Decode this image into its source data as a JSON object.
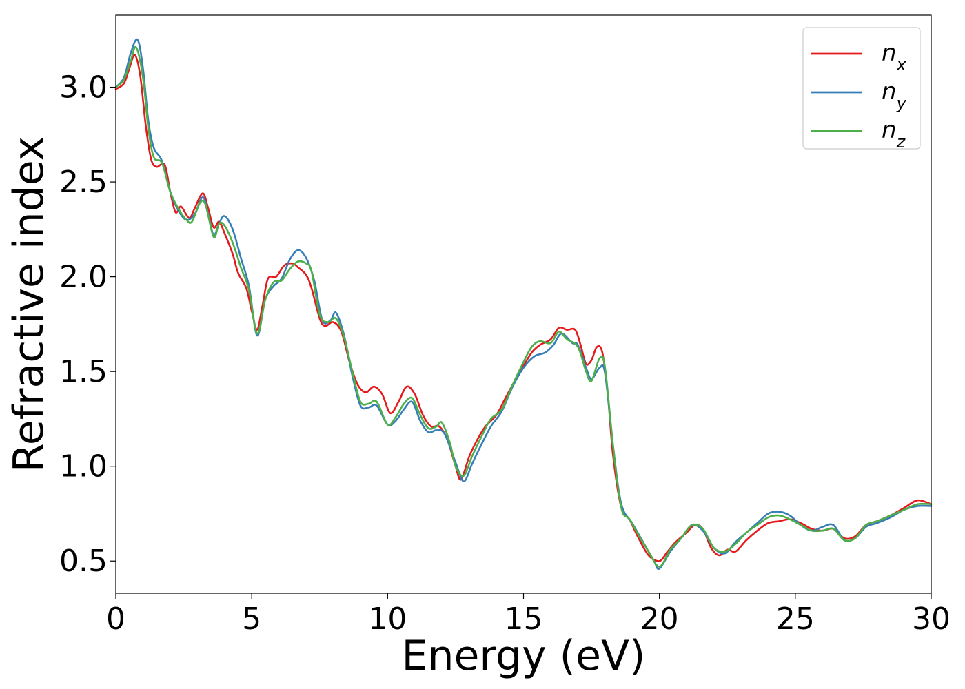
{
  "chart_data": {
    "type": "line",
    "title": "",
    "xlabel": "Energy (eV)",
    "ylabel": "Refractive index",
    "xlim": [
      0,
      30
    ],
    "ylim": [
      0.33,
      3.38
    ],
    "xticks": [
      0,
      5,
      10,
      15,
      20,
      25,
      30
    ],
    "yticks": [
      0.5,
      1.0,
      1.5,
      2.0,
      2.5,
      3.0
    ],
    "xtick_labels": [
      "0",
      "5",
      "10",
      "15",
      "20",
      "25",
      "30"
    ],
    "ytick_labels": [
      "0.5",
      "1.0",
      "1.5",
      "2.0",
      "2.5",
      "3.0"
    ],
    "grid": false,
    "legend_position": "top-right",
    "series": [
      {
        "name": "n",
        "subscript": "x",
        "color": "#e41a1c",
        "points": [
          [
            0,
            2.99
          ],
          [
            0.3,
            3.02
          ],
          [
            0.5,
            3.1
          ],
          [
            0.7,
            3.17
          ],
          [
            0.9,
            3.06
          ],
          [
            1.1,
            2.8
          ],
          [
            1.3,
            2.62
          ],
          [
            1.5,
            2.58
          ],
          [
            1.8,
            2.59
          ],
          [
            2.0,
            2.45
          ],
          [
            2.2,
            2.34
          ],
          [
            2.4,
            2.37
          ],
          [
            2.7,
            2.31
          ],
          [
            2.9,
            2.36
          ],
          [
            3.2,
            2.44
          ],
          [
            3.4,
            2.36
          ],
          [
            3.6,
            2.26
          ],
          [
            3.8,
            2.29
          ],
          [
            4.0,
            2.23
          ],
          [
            4.3,
            2.12
          ],
          [
            4.5,
            2.02
          ],
          [
            4.8,
            1.94
          ],
          [
            5.0,
            1.82
          ],
          [
            5.2,
            1.72
          ],
          [
            5.4,
            1.85
          ],
          [
            5.6,
            1.99
          ],
          [
            5.9,
            2.0
          ],
          [
            6.2,
            2.06
          ],
          [
            6.5,
            2.07
          ],
          [
            6.7,
            2.05
          ],
          [
            7.0,
            2.01
          ],
          [
            7.2,
            1.94
          ],
          [
            7.5,
            1.78
          ],
          [
            7.7,
            1.74
          ],
          [
            8.0,
            1.76
          ],
          [
            8.3,
            1.71
          ],
          [
            8.6,
            1.55
          ],
          [
            8.9,
            1.43
          ],
          [
            9.2,
            1.39
          ],
          [
            9.5,
            1.42
          ],
          [
            9.8,
            1.38
          ],
          [
            10.1,
            1.28
          ],
          [
            10.4,
            1.34
          ],
          [
            10.7,
            1.42
          ],
          [
            11.0,
            1.38
          ],
          [
            11.3,
            1.27
          ],
          [
            11.6,
            1.21
          ],
          [
            11.9,
            1.21
          ],
          [
            12.2,
            1.14
          ],
          [
            12.5,
            1.0
          ],
          [
            12.7,
            0.93
          ],
          [
            13.0,
            1.05
          ],
          [
            13.3,
            1.14
          ],
          [
            13.6,
            1.21
          ],
          [
            14.0,
            1.27
          ],
          [
            14.3,
            1.35
          ],
          [
            14.6,
            1.43
          ],
          [
            15.0,
            1.53
          ],
          [
            15.3,
            1.6
          ],
          [
            15.6,
            1.64
          ],
          [
            16.0,
            1.67
          ],
          [
            16.3,
            1.73
          ],
          [
            16.6,
            1.72
          ],
          [
            16.9,
            1.72
          ],
          [
            17.1,
            1.64
          ],
          [
            17.3,
            1.54
          ],
          [
            17.5,
            1.56
          ],
          [
            17.7,
            1.63
          ],
          [
            17.9,
            1.6
          ],
          [
            18.1,
            1.38
          ],
          [
            18.3,
            1.05
          ],
          [
            18.6,
            0.78
          ],
          [
            18.9,
            0.72
          ],
          [
            19.2,
            0.63
          ],
          [
            19.6,
            0.53
          ],
          [
            20.0,
            0.5
          ],
          [
            20.3,
            0.55
          ],
          [
            20.6,
            0.6
          ],
          [
            21.0,
            0.65
          ],
          [
            21.3,
            0.69
          ],
          [
            21.6,
            0.67
          ],
          [
            21.9,
            0.57
          ],
          [
            22.2,
            0.53
          ],
          [
            22.5,
            0.56
          ],
          [
            22.8,
            0.55
          ],
          [
            23.2,
            0.61
          ],
          [
            23.6,
            0.66
          ],
          [
            24.0,
            0.7
          ],
          [
            24.4,
            0.71
          ],
          [
            24.8,
            0.72
          ],
          [
            25.2,
            0.7
          ],
          [
            25.6,
            0.67
          ],
          [
            26.0,
            0.66
          ],
          [
            26.4,
            0.67
          ],
          [
            26.8,
            0.62
          ],
          [
            27.2,
            0.63
          ],
          [
            27.6,
            0.69
          ],
          [
            28.0,
            0.71
          ],
          [
            28.5,
            0.74
          ],
          [
            29.0,
            0.78
          ],
          [
            29.5,
            0.82
          ],
          [
            30.0,
            0.8
          ]
        ]
      },
      {
        "name": "n",
        "subscript": "y",
        "color": "#377eb8",
        "points": [
          [
            0,
            3.0
          ],
          [
            0.3,
            3.05
          ],
          [
            0.55,
            3.18
          ],
          [
            0.8,
            3.25
          ],
          [
            1.0,
            3.1
          ],
          [
            1.2,
            2.82
          ],
          [
            1.4,
            2.68
          ],
          [
            1.7,
            2.61
          ],
          [
            2.0,
            2.45
          ],
          [
            2.3,
            2.35
          ],
          [
            2.6,
            2.3
          ],
          [
            2.9,
            2.33
          ],
          [
            3.2,
            2.42
          ],
          [
            3.4,
            2.33
          ],
          [
            3.6,
            2.22
          ],
          [
            3.8,
            2.28
          ],
          [
            4.0,
            2.32
          ],
          [
            4.3,
            2.25
          ],
          [
            4.6,
            2.1
          ],
          [
            4.9,
            1.95
          ],
          [
            5.2,
            1.69
          ],
          [
            5.5,
            1.88
          ],
          [
            5.8,
            1.95
          ],
          [
            6.1,
            1.99
          ],
          [
            6.4,
            2.09
          ],
          [
            6.7,
            2.14
          ],
          [
            7.0,
            2.1
          ],
          [
            7.3,
            1.98
          ],
          [
            7.6,
            1.77
          ],
          [
            7.9,
            1.77
          ],
          [
            8.1,
            1.81
          ],
          [
            8.4,
            1.69
          ],
          [
            8.7,
            1.48
          ],
          [
            9.0,
            1.32
          ],
          [
            9.3,
            1.31
          ],
          [
            9.6,
            1.32
          ],
          [
            10.0,
            1.22
          ],
          [
            10.3,
            1.24
          ],
          [
            10.6,
            1.3
          ],
          [
            10.9,
            1.34
          ],
          [
            11.2,
            1.24
          ],
          [
            11.5,
            1.18
          ],
          [
            11.8,
            1.19
          ],
          [
            12.1,
            1.17
          ],
          [
            12.5,
            1.02
          ],
          [
            12.8,
            0.92
          ],
          [
            13.1,
            1.01
          ],
          [
            13.4,
            1.1
          ],
          [
            13.8,
            1.21
          ],
          [
            14.2,
            1.29
          ],
          [
            14.6,
            1.42
          ],
          [
            15.0,
            1.52
          ],
          [
            15.4,
            1.58
          ],
          [
            15.8,
            1.6
          ],
          [
            16.1,
            1.64
          ],
          [
            16.4,
            1.7
          ],
          [
            16.8,
            1.65
          ],
          [
            17.0,
            1.64
          ],
          [
            17.3,
            1.52
          ],
          [
            17.5,
            1.46
          ],
          [
            17.8,
            1.52
          ],
          [
            18.0,
            1.49
          ],
          [
            18.3,
            1.1
          ],
          [
            18.6,
            0.8
          ],
          [
            19.0,
            0.7
          ],
          [
            19.4,
            0.6
          ],
          [
            19.8,
            0.5
          ],
          [
            20.0,
            0.46
          ],
          [
            20.4,
            0.55
          ],
          [
            20.8,
            0.62
          ],
          [
            21.2,
            0.69
          ],
          [
            21.6,
            0.66
          ],
          [
            22.0,
            0.57
          ],
          [
            22.4,
            0.54
          ],
          [
            22.8,
            0.6
          ],
          [
            23.2,
            0.65
          ],
          [
            23.6,
            0.7
          ],
          [
            24.0,
            0.75
          ],
          [
            24.4,
            0.76
          ],
          [
            24.8,
            0.74
          ],
          [
            25.2,
            0.69
          ],
          [
            25.6,
            0.66
          ],
          [
            26.0,
            0.68
          ],
          [
            26.4,
            0.69
          ],
          [
            26.8,
            0.61
          ],
          [
            27.2,
            0.62
          ],
          [
            27.6,
            0.68
          ],
          [
            28.0,
            0.7
          ],
          [
            28.5,
            0.73
          ],
          [
            29.0,
            0.77
          ],
          [
            29.5,
            0.79
          ],
          [
            30.0,
            0.79
          ]
        ]
      },
      {
        "name": "n",
        "subscript": "z",
        "color": "#4daf4a",
        "points": [
          [
            0,
            3.0
          ],
          [
            0.3,
            3.04
          ],
          [
            0.55,
            3.14
          ],
          [
            0.75,
            3.21
          ],
          [
            1.0,
            3.05
          ],
          [
            1.2,
            2.78
          ],
          [
            1.4,
            2.63
          ],
          [
            1.7,
            2.6
          ],
          [
            2.0,
            2.45
          ],
          [
            2.3,
            2.36
          ],
          [
            2.6,
            2.3
          ],
          [
            2.8,
            2.29
          ],
          [
            3.1,
            2.39
          ],
          [
            3.3,
            2.38
          ],
          [
            3.6,
            2.21
          ],
          [
            3.8,
            2.28
          ],
          [
            4.0,
            2.27
          ],
          [
            4.3,
            2.18
          ],
          [
            4.6,
            2.05
          ],
          [
            4.9,
            1.93
          ],
          [
            5.2,
            1.7
          ],
          [
            5.5,
            1.88
          ],
          [
            5.8,
            1.97
          ],
          [
            6.1,
            1.98
          ],
          [
            6.4,
            2.04
          ],
          [
            6.7,
            2.08
          ],
          [
            7.0,
            2.07
          ],
          [
            7.2,
            2.03
          ],
          [
            7.5,
            1.8
          ],
          [
            7.8,
            1.76
          ],
          [
            8.1,
            1.78
          ],
          [
            8.4,
            1.68
          ],
          [
            8.7,
            1.5
          ],
          [
            9.0,
            1.34
          ],
          [
            9.3,
            1.33
          ],
          [
            9.6,
            1.34
          ],
          [
            10.0,
            1.22
          ],
          [
            10.3,
            1.26
          ],
          [
            10.6,
            1.33
          ],
          [
            10.9,
            1.36
          ],
          [
            11.2,
            1.27
          ],
          [
            11.5,
            1.2
          ],
          [
            11.8,
            1.21
          ],
          [
            12.0,
            1.23
          ],
          [
            12.3,
            1.12
          ],
          [
            12.5,
            1.0
          ],
          [
            12.8,
            0.95
          ],
          [
            13.1,
            1.05
          ],
          [
            13.5,
            1.17
          ],
          [
            13.8,
            1.25
          ],
          [
            14.2,
            1.3
          ],
          [
            14.6,
            1.43
          ],
          [
            15.0,
            1.55
          ],
          [
            15.3,
            1.63
          ],
          [
            15.6,
            1.66
          ],
          [
            16.0,
            1.65
          ],
          [
            16.3,
            1.71
          ],
          [
            16.6,
            1.67
          ],
          [
            17.0,
            1.63
          ],
          [
            17.3,
            1.5
          ],
          [
            17.5,
            1.45
          ],
          [
            17.8,
            1.57
          ],
          [
            18.0,
            1.52
          ],
          [
            18.3,
            1.1
          ],
          [
            18.6,
            0.78
          ],
          [
            18.9,
            0.72
          ],
          [
            19.3,
            0.62
          ],
          [
            19.6,
            0.55
          ],
          [
            20.0,
            0.47
          ],
          [
            20.4,
            0.56
          ],
          [
            20.8,
            0.62
          ],
          [
            21.2,
            0.69
          ],
          [
            21.6,
            0.67
          ],
          [
            22.0,
            0.57
          ],
          [
            22.4,
            0.55
          ],
          [
            22.8,
            0.59
          ],
          [
            23.2,
            0.65
          ],
          [
            23.6,
            0.69
          ],
          [
            24.0,
            0.73
          ],
          [
            24.4,
            0.74
          ],
          [
            24.8,
            0.72
          ],
          [
            25.2,
            0.69
          ],
          [
            25.6,
            0.66
          ],
          [
            26.0,
            0.66
          ],
          [
            26.4,
            0.67
          ],
          [
            26.8,
            0.61
          ],
          [
            27.2,
            0.62
          ],
          [
            27.6,
            0.69
          ],
          [
            28.0,
            0.71
          ],
          [
            28.5,
            0.74
          ],
          [
            29.0,
            0.77
          ],
          [
            29.5,
            0.8
          ],
          [
            30.0,
            0.8
          ]
        ]
      }
    ]
  }
}
